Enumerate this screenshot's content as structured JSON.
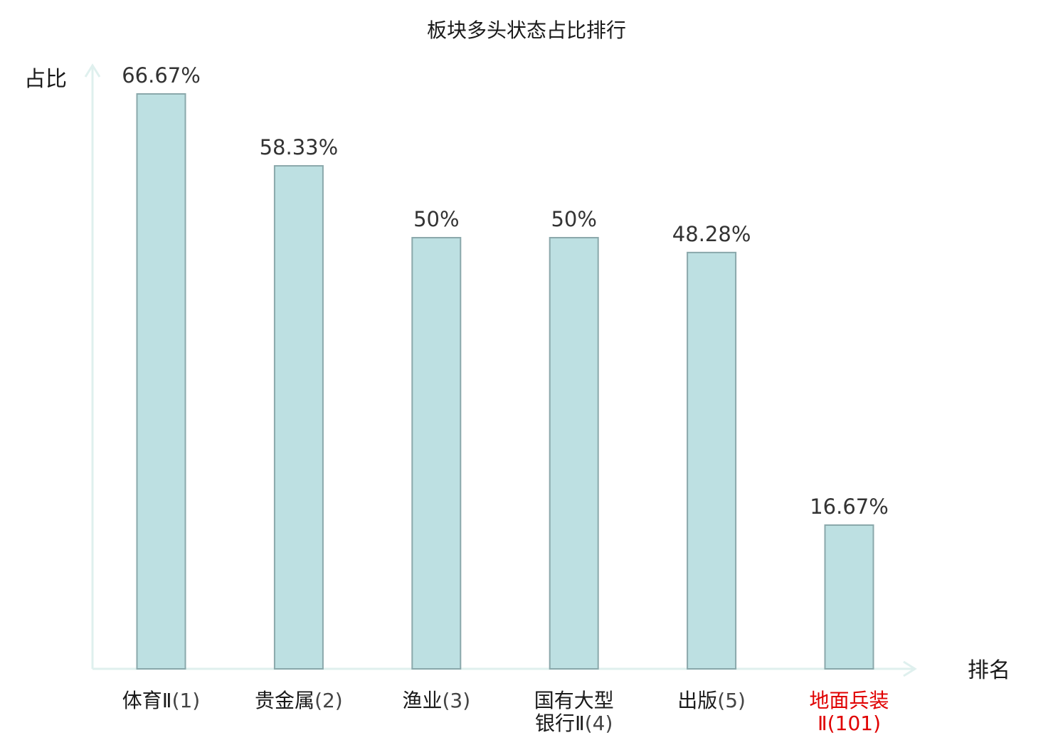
{
  "chart_data": {
    "type": "bar",
    "title": "板块多头状态占比排行",
    "ylabel": "占比",
    "xlabel": "排名",
    "ylim": [
      0,
      70
    ],
    "grid": false,
    "categories": [
      {
        "lines": [
          {
            "name": "体育Ⅱ",
            "rank": "(1)"
          }
        ],
        "highlight": false
      },
      {
        "lines": [
          {
            "name": "贵金属",
            "rank": "(2)"
          }
        ],
        "highlight": false
      },
      {
        "lines": [
          {
            "name": "渔业",
            "rank": "(3)"
          }
        ],
        "highlight": false
      },
      {
        "lines": [
          {
            "name": "国有大型",
            "rank": ""
          },
          {
            "name": "银行Ⅱ",
            "rank": "(4)"
          }
        ],
        "highlight": false
      },
      {
        "lines": [
          {
            "name": "出版",
            "rank": "(5)"
          }
        ],
        "highlight": false
      },
      {
        "lines": [
          {
            "name": "地面兵装",
            "rank": ""
          },
          {
            "name": "Ⅱ",
            "rank": "(101)"
          }
        ],
        "highlight": true
      }
    ],
    "values": [
      66.67,
      58.33,
      50,
      50,
      48.28,
      16.67
    ],
    "data_labels": [
      "66.67%",
      "58.33%",
      "50%",
      "50%",
      "48.28%",
      "16.67%"
    ],
    "colors": {
      "bar_fill": "#bde0e2",
      "bar_stroke": "#8aa8ab",
      "axis": "#dff0ee",
      "highlight_label": "#e00000"
    }
  }
}
